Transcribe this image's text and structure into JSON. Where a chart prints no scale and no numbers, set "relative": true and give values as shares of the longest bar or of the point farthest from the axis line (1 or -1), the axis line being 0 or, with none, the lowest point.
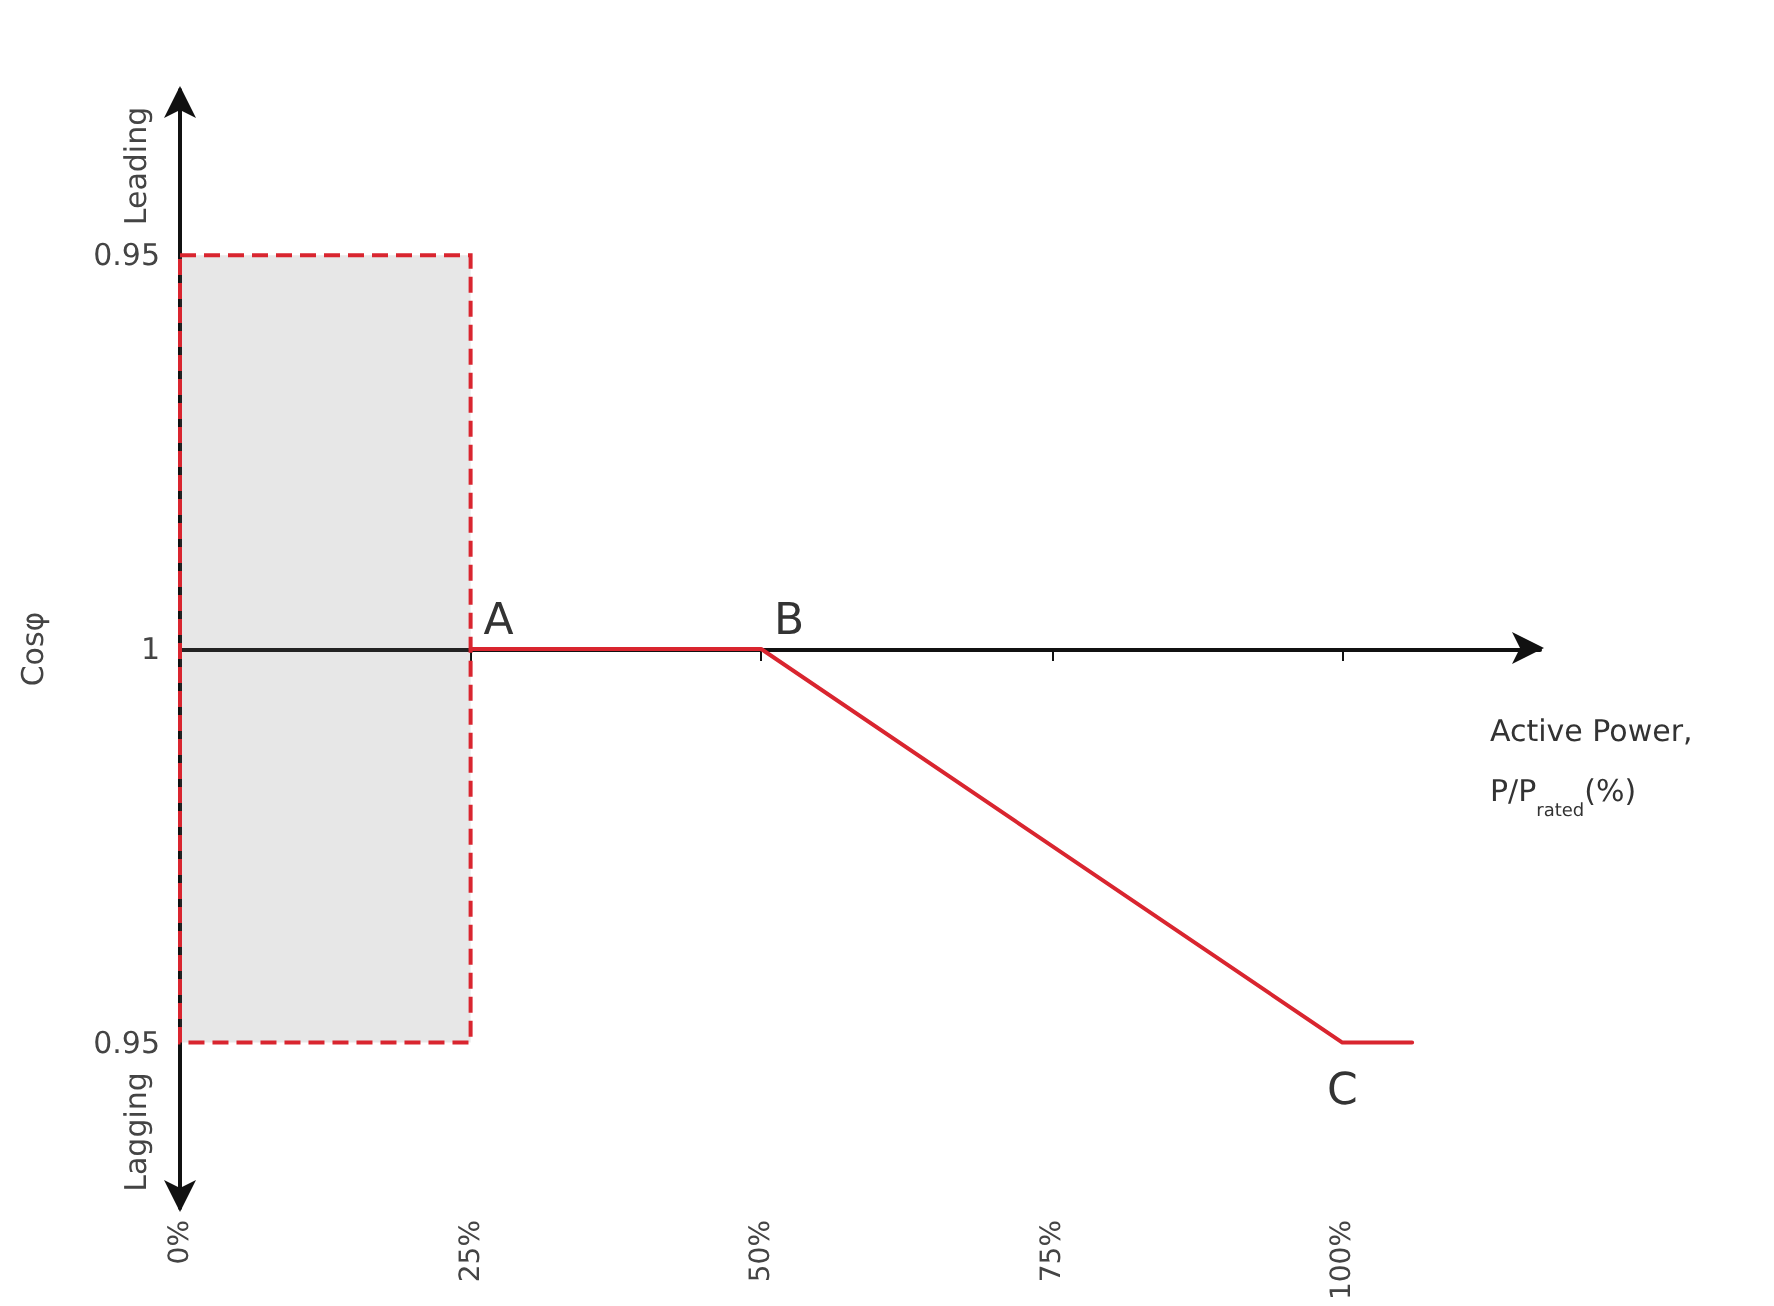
{
  "chart_data": {
    "type": "line",
    "relative": true,
    "xlabel": "Active Power,\nP/P$_{rated}$(%)",
    "ylabel": "Cosφ",
    "x": [
      25,
      50,
      100,
      106
    ],
    "series": [
      {
        "color": "#d9252f",
        "values": [
          0,
          0,
          -1,
          -1
        ]
      }
    ],
    "xlim": [
      0,
      117
    ],
    "xticks": [
      {
        "value": 0,
        "label": "0%"
      },
      {
        "value": 25,
        "label": "25%"
      },
      {
        "value": 50,
        "label": "50%"
      },
      {
        "value": 75,
        "label": "75%"
      },
      {
        "value": 100,
        "label": "100%"
      }
    ],
    "bands": [
      {
        "axis": "x",
        "from": 0,
        "to": 25,
        "color": "#d9252f"
      }
    ],
    "annotations": [
      "Leading",
      "Lagging",
      {
        "text": "0.95",
        "x": 0,
        "y": 1
      },
      {
        "text": "1",
        "x": 0,
        "y": 0
      },
      {
        "text": "0.95",
        "x": 0,
        "y": -1
      },
      {
        "text": "A",
        "x": 25,
        "y": 0
      },
      {
        "text": "B",
        "x": 50,
        "y": 0
      },
      {
        "text": "C",
        "x": 100,
        "y": -1
      }
    ],
    "marker": "none",
    "grid": false
  }
}
